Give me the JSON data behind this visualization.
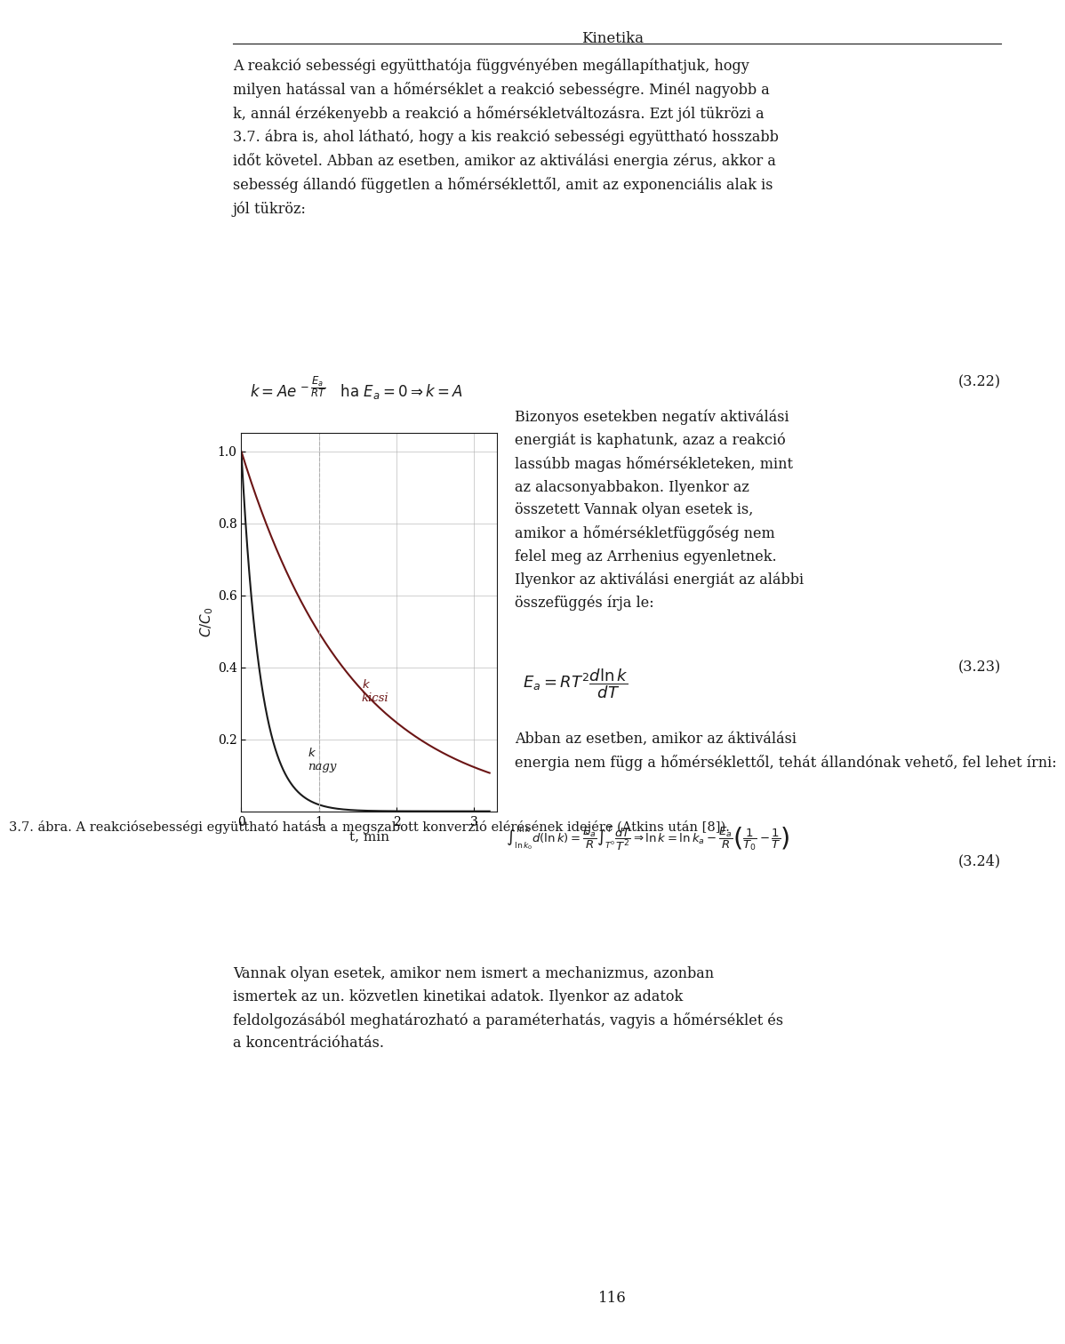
{
  "title": "Kinetika",
  "page_number": "116",
  "bg_color": "#ffffff",
  "text_color": "#1a1a1a",
  "fig_width": 9.6,
  "fig_height": 14.92,
  "paragraph1": "A reakció sebességi együtthatója függvényében megállapíthatjuk, hogy milyen hatással van a hőmérséklet a reakció sebességre. Minél nagyobb a k, annál érzékenyebb a reakció a hőmérsékletváltozásra. Ezt jól tükrözi a 3.7. ábra is, ahol látható, hogy a kis reakció sebességi együttható hosszabb időt követel. Abban az esetben, amikor az aktiválási energia zérus, akkor a sebesség állandó független a hőmérséklettől, amit az exponenciális alak is jól tükröz:",
  "eq322_label": "(3.22)",
  "right_text1": "Bizonyos esetekben negatív aktiválási energiát is kaphatunk, azaz a reakció lassúbb magas hőmérsékleteken, mint az alacsonyabbakon. Ilyenkor az összetett Vannak olyan esetek is, amikor a hőmérsékletfüggőség nem felel meg az Arrhenius egyenletnek. Ilyenkor az aktiválási energiát az alábbi összefüggés írja le:",
  "eq323_label": "(3.23)",
  "right_text2": "Abban az esetben, amikor az aktiválási energia nem függ a hőmérséklettől, tehát állandónak vehető, fel lehet írni:",
  "eq324_label": "(3.24)",
  "paragraph_final": "Vannak olyan esetek, amikor nem ismert a mechanizmus, azonban ismertek az un. közvetlen kinetikai adatok. Ilyenkor az adatok feldolgozásából meghatározható a paraméterhatás, vagyis a hőmérséklet és a koncentrációhatás.",
  "graph_xlabel": "t, min",
  "graph_ylabel": "C/C₀",
  "graph_yticks": [
    0.2,
    0.4,
    0.6,
    0.8,
    1.0
  ],
  "graph_xticks": [
    0,
    1,
    2,
    3
  ],
  "k_nagy_color": "#1a1a1a",
  "k_kicsi_color": "#6b1515",
  "grid_color": "#b0b0b0",
  "caption": "3.7. ábra. A reakciósebességi együttható hatása a megszabott konverzió elérésének idejére (Atkins után [8]).",
  "font_family": "DejaVu Serif"
}
